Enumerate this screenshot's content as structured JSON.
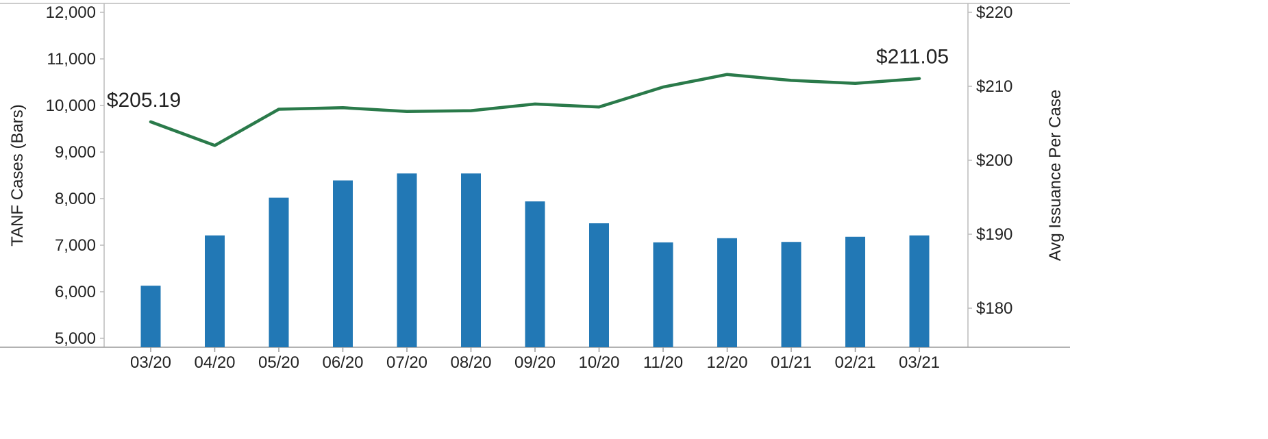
{
  "chart_data": {
    "type": "bar",
    "categories": [
      "03/20",
      "04/20",
      "05/20",
      "06/20",
      "07/20",
      "08/20",
      "09/20",
      "10/20",
      "11/20",
      "12/20",
      "01/21",
      "02/21",
      "03/21"
    ],
    "series": [
      {
        "type": "bar",
        "axis": "left",
        "values": [
          6130,
          7210,
          8020,
          8390,
          8540,
          8540,
          7940,
          7470,
          7060,
          7150,
          7070,
          7180,
          7210
        ],
        "color": "#2278b5"
      },
      {
        "type": "line",
        "axis": "right",
        "values": [
          205.19,
          202.0,
          206.9,
          207.1,
          206.6,
          206.7,
          207.6,
          207.2,
          209.9,
          211.6,
          210.8,
          210.4,
          211.05
        ],
        "color": "#2a7a4a"
      }
    ],
    "y_left": {
      "label": "TANF Cases (Bars)",
      "range": [
        4850,
        12000
      ],
      "ticks": [
        5000,
        6000,
        7000,
        8000,
        9000,
        10000,
        11000,
        12000
      ],
      "tick_labels": [
        "5,000",
        "6,000",
        "7,000",
        "8,000",
        "9,000",
        "10,000",
        "11,000",
        "12,000"
      ]
    },
    "y_right": {
      "label": "Avg Issuance Per Case",
      "range": [
        175,
        220
      ],
      "ticks": [
        180,
        190,
        200,
        210,
        220
      ],
      "tick_labels": [
        "$180",
        "$190",
        "$200",
        "$210",
        "$220"
      ]
    },
    "annotations": [
      {
        "category": "03/20",
        "text": "$205.19"
      },
      {
        "category": "03/21",
        "text": "$211.05"
      }
    ],
    "grid": false,
    "legend": "none"
  }
}
